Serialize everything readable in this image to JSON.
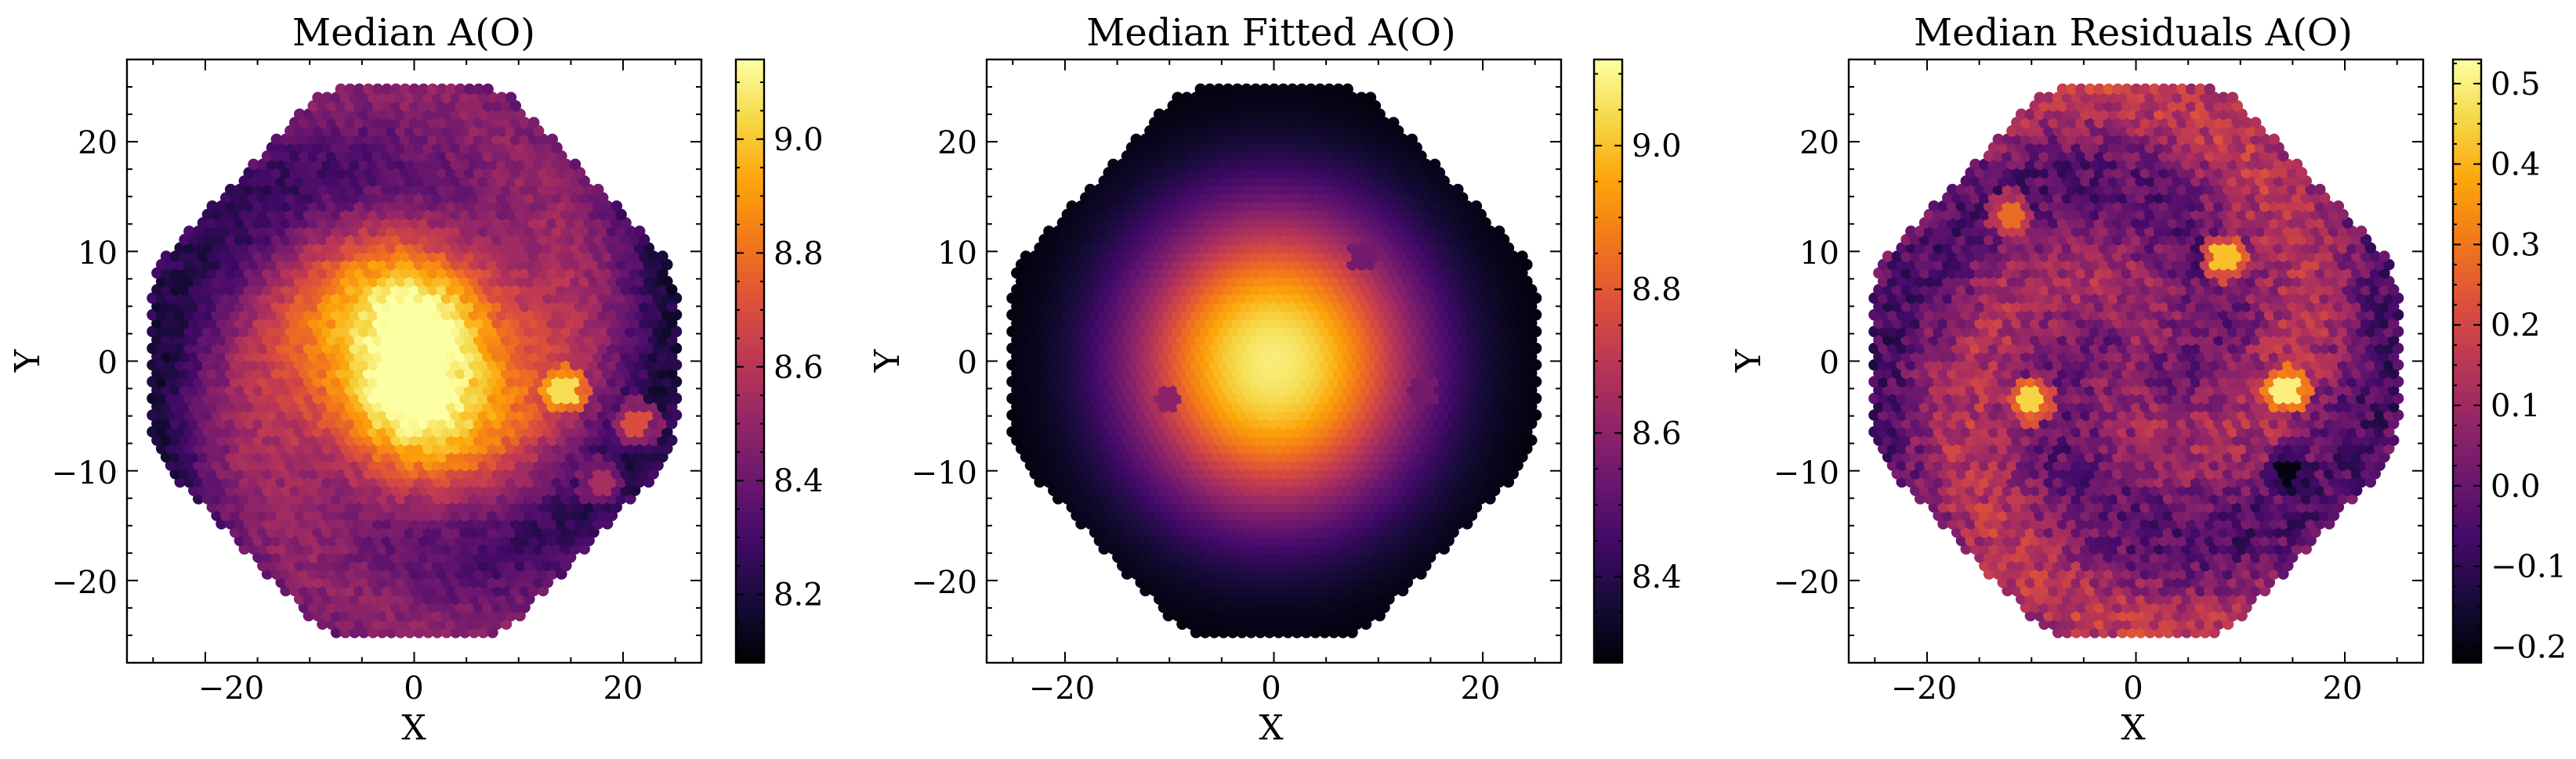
{
  "chart_data": [
    {
      "type": "heatmap",
      "title": "Median A(O)",
      "xlabel": "X",
      "ylabel": "Y",
      "xlim": [
        -27.5,
        27.5
      ],
      "ylim": [
        -27.5,
        27.5
      ],
      "xticks": [
        -20,
        0,
        20
      ],
      "yticks": [
        -20,
        -10,
        0,
        10,
        20
      ],
      "xtick_labels": [
        "−20",
        "0",
        "20"
      ],
      "ytick_labels": [
        "−20",
        "−10",
        "0",
        "10",
        "20"
      ],
      "colormap": "inferno",
      "colorbar": {
        "range": [
          8.08,
          9.14
        ],
        "ticks": [
          8.2,
          8.4,
          8.6,
          8.8,
          9.0
        ],
        "tick_labels": [
          "8.2",
          "8.4",
          "8.6",
          "8.8",
          "9.0"
        ]
      },
      "field": {
        "center_value": 9.12,
        "edge_value": 8.3,
        "spiral_amplitude": 0.1,
        "radius": 25.5
      },
      "features": [
        {
          "x": 14.5,
          "y": -2.5,
          "value": 9.05
        },
        {
          "x": 21.5,
          "y": -5.5,
          "value": 8.7
        },
        {
          "x": 18.0,
          "y": -11.0,
          "value": 8.55
        }
      ]
    },
    {
      "type": "heatmap",
      "title": "Median Fitted A(O)",
      "xlabel": "X",
      "ylabel": "Y",
      "xlim": [
        -27.5,
        27.5
      ],
      "ylim": [
        -27.5,
        27.5
      ],
      "xticks": [
        -20,
        0,
        20
      ],
      "yticks": [
        -20,
        -10,
        0,
        10,
        20
      ],
      "xtick_labels": [
        "−20",
        "0",
        "20"
      ],
      "ytick_labels": [
        "−20",
        "−10",
        "0",
        "10",
        "20"
      ],
      "colormap": "inferno",
      "colorbar": {
        "range": [
          8.28,
          9.12
        ],
        "ticks": [
          8.4,
          8.6,
          8.8,
          9.0
        ],
        "tick_labels": [
          "8.4",
          "8.6",
          "8.8",
          "9.0"
        ]
      },
      "field": {
        "center_value": 9.08,
        "edge_value": 8.28,
        "spiral_amplitude": 0,
        "radius": 25.5
      },
      "features": [
        {
          "x": 8.5,
          "y": 9.5,
          "value": 8.55
        },
        {
          "x": 14.5,
          "y": -2.5,
          "value": 8.55
        },
        {
          "x": -10.0,
          "y": -3.5,
          "value": 8.6
        }
      ]
    },
    {
      "type": "heatmap",
      "title": "Median Residuals A(O)",
      "xlabel": "X",
      "ylabel": "Y",
      "xlim": [
        -27.5,
        27.5
      ],
      "ylim": [
        -27.5,
        27.5
      ],
      "xticks": [
        -20,
        0,
        20
      ],
      "yticks": [
        -20,
        -10,
        0,
        10,
        20
      ],
      "xtick_labels": [
        "−20",
        "0",
        "20"
      ],
      "ytick_labels": [
        "−20",
        "−10",
        "0",
        "10",
        "20"
      ],
      "colormap": "inferno",
      "colorbar": {
        "range": [
          -0.22,
          0.53
        ],
        "ticks": [
          -0.2,
          -0.1,
          0.0,
          0.1,
          0.2,
          0.3,
          0.4,
          0.5
        ],
        "tick_labels": [
          "−0.2",
          "−0.1",
          "0.0",
          "0.1",
          "0.2",
          "0.3",
          "0.4",
          "0.5"
        ]
      },
      "field": {
        "center_value": 0.05,
        "edge_value": 0.07,
        "spiral_amplitude": 0.09,
        "radius": 25.5
      },
      "features": [
        {
          "x": 14.5,
          "y": -2.5,
          "value": 0.5
        },
        {
          "x": -10.0,
          "y": -3.5,
          "value": 0.45
        },
        {
          "x": 8.5,
          "y": 9.5,
          "value": 0.42
        },
        {
          "x": -12.0,
          "y": 13.5,
          "value": 0.28
        },
        {
          "x": 14.5,
          "y": -10.0,
          "value": -0.2
        }
      ]
    }
  ]
}
